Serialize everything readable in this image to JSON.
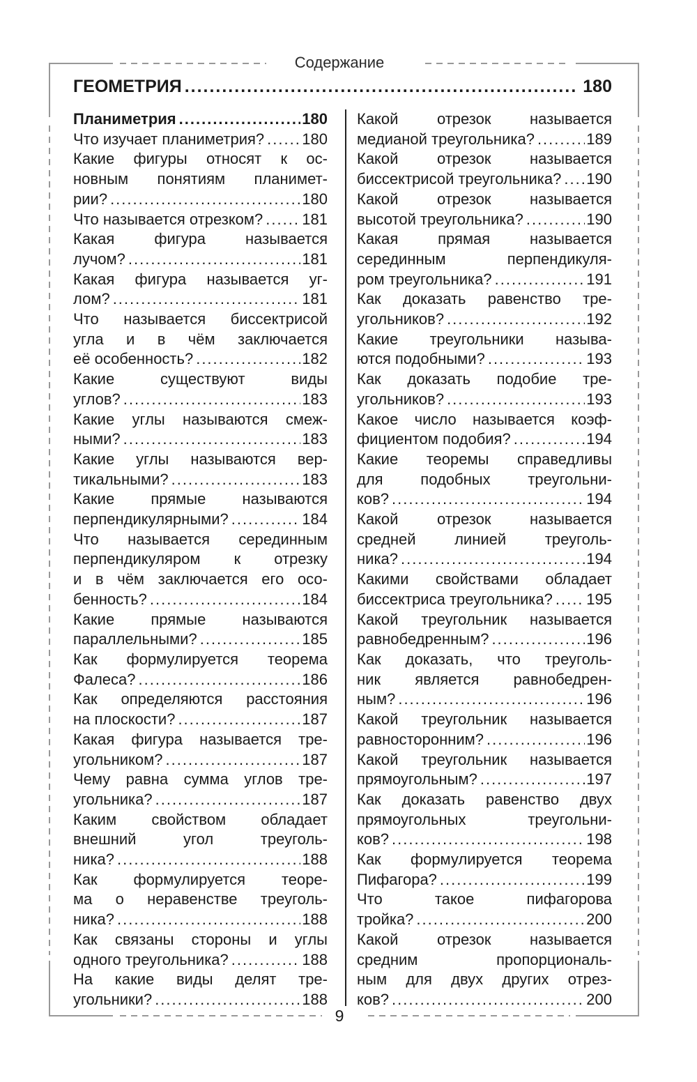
{
  "running_head": "Содержание",
  "section": {
    "title": "ГЕОМЕТРИЯ",
    "page": "180"
  },
  "footer": {
    "page_number": "9"
  },
  "colors": {
    "text": "#1a1a1a",
    "frame_gray": "#989898",
    "divider": "#222222"
  },
  "columns": {
    "left": [
      {
        "bold": true,
        "lines": [],
        "last": "Планиметрия",
        "page": "180"
      },
      {
        "lines": [],
        "last": "Что изучает планиметрия?",
        "page": "180"
      },
      {
        "lines": [
          "Какие фигуры относят к ос-",
          "новным понятиям планимет-"
        ],
        "last": "рии?",
        "page": "180"
      },
      {
        "lines": [],
        "last": "Что называется отрезком?",
        "page": "181"
      },
      {
        "lines": [
          "Какая фигура называется"
        ],
        "last": "лучом?",
        "page": "181"
      },
      {
        "lines": [
          "Какая фигура называется уг-"
        ],
        "last": "лом?",
        "page": "181"
      },
      {
        "lines": [
          "Что называется биссектрисой",
          "угла и в чём заключается"
        ],
        "last": "её особенность?",
        "page": "182"
      },
      {
        "lines": [
          "Какие существуют виды"
        ],
        "last": "углов?",
        "page": "183"
      },
      {
        "lines": [
          "Какие углы называются смеж-"
        ],
        "last": "ными?",
        "page": "183"
      },
      {
        "lines": [
          "Какие углы называются вер-"
        ],
        "last": "тикальными?",
        "page": "183"
      },
      {
        "lines": [
          "Какие прямые называются"
        ],
        "last": "перпендикулярными?",
        "page": "184"
      },
      {
        "lines": [
          "Что называется серединным",
          "перпендикуляром к отрезку",
          "и в чём заключается его осо-"
        ],
        "last": "бенность?",
        "page": "184"
      },
      {
        "lines": [
          "Какие прямые называются"
        ],
        "last": "параллельными?",
        "page": "185"
      },
      {
        "lines": [
          "Как формулируется теорема"
        ],
        "last": "Фалеса?",
        "page": "186"
      },
      {
        "lines": [
          "Как определяются расстояния"
        ],
        "last": "на плоскости?",
        "page": "187"
      },
      {
        "lines": [
          "Какая фигура называется тре-"
        ],
        "last": "угольником?",
        "page": "187"
      },
      {
        "lines": [
          "Чему равна сумма углов тре-"
        ],
        "last": "угольника?",
        "page": "187"
      },
      {
        "lines": [
          "Каким свойством обладает",
          "внешний угол треуголь-"
        ],
        "last": "ника?",
        "page": "188"
      },
      {
        "lines": [
          "Как формулируется теоре-",
          "ма о неравенстве треуголь-"
        ],
        "last": "ника?",
        "page": "188"
      },
      {
        "lines": [
          "Как связаны стороны и углы"
        ],
        "last": "одного треугольника?",
        "page": "188"
      },
      {
        "lines": [
          "На какие виды делят тре-"
        ],
        "last": "угольники?",
        "page": "188"
      }
    ],
    "right": [
      {
        "lines": [
          "Какой отрезок называется"
        ],
        "last": "медианой треугольника?",
        "page": "189"
      },
      {
        "lines": [
          "Какой отрезок называется"
        ],
        "last": "биссектрисой треугольника?",
        "page": "190"
      },
      {
        "lines": [
          "Какой отрезок называется"
        ],
        "last": "высотой треугольника?",
        "page": "190"
      },
      {
        "lines": [
          "Какая прямая называется",
          "серединным перпендикуля-"
        ],
        "last": "ром треугольника?",
        "page": "191"
      },
      {
        "lines": [
          "Как доказать равенство тре-"
        ],
        "last": "угольников?",
        "page": "192"
      },
      {
        "lines": [
          "Какие треугольники называ-"
        ],
        "last": "ются подобными?",
        "page": "193"
      },
      {
        "lines": [
          "Как доказать подобие тре-"
        ],
        "last": "угольников?",
        "page": "193"
      },
      {
        "lines": [
          "Какое число называется коэф-"
        ],
        "last": "фициентом подобия?",
        "page": "194"
      },
      {
        "lines": [
          "Какие теоремы справедливы",
          "для подобных треугольни-"
        ],
        "last": "ков?",
        "page": "194"
      },
      {
        "lines": [
          "Какой отрезок называется",
          "средней линией треуголь-"
        ],
        "last": "ника?",
        "page": "194"
      },
      {
        "lines": [
          "Какими свойствами обладает"
        ],
        "last": "биссектриса треугольника?",
        "page": "195"
      },
      {
        "lines": [
          "Какой треугольник называется"
        ],
        "last": "равнобедренным?",
        "page": "196"
      },
      {
        "lines": [
          "Как доказать, что треуголь-",
          "ник является равнобедрен-"
        ],
        "last": "ным?",
        "page": "196"
      },
      {
        "lines": [
          "Какой треугольник называется"
        ],
        "last": "равносторонним?",
        "page": "196"
      },
      {
        "lines": [
          "Какой треугольник называется"
        ],
        "last": "прямоугольным?",
        "page": "197"
      },
      {
        "lines": [
          "Как доказать равенство двух",
          "прямоугольных треугольни-"
        ],
        "last": "ков?",
        "page": "198"
      },
      {
        "lines": [
          "Как формулируется теорема"
        ],
        "last": "Пифагора?",
        "page": "199"
      },
      {
        "lines": [
          "Что такое пифагорова"
        ],
        "last": "тройка?",
        "page": "200"
      },
      {
        "lines": [
          "Какой отрезок называется",
          "средним пропорциональ-",
          "ным для двух других отрез-"
        ],
        "last": "ков?",
        "page": "200"
      }
    ]
  }
}
